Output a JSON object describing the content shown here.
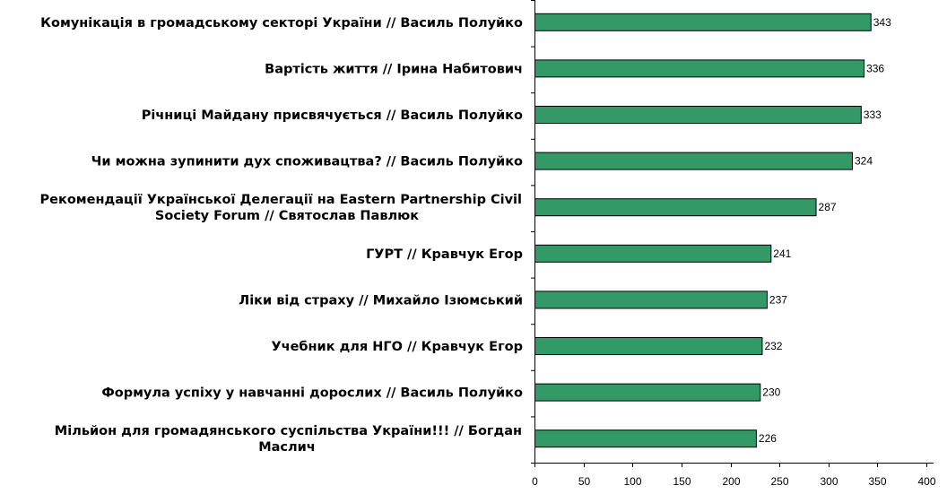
{
  "chart_data": {
    "type": "bar",
    "orientation": "horizontal",
    "title": "",
    "xlabel": "",
    "ylabel": "",
    "categories": [
      [
        "Комунікація в громадському секторі України  // Василь Полуйко"
      ],
      [
        "Вартість життя  // Ірина Набитович"
      ],
      [
        "Річниці Майдану присвячується  // Василь Полуйко"
      ],
      [
        "Чи можна зупинити дух споживацтва?  // Василь Полуйко"
      ],
      [
        "Рекомендації Української Делегації на Eastern Partnership Civil",
        "Society Forum  //  Святослав Павлюк"
      ],
      [
        "ГУРТ  // Кравчук Егор"
      ],
      [
        "Ліки від страху  // Михайло Ізюмський"
      ],
      [
        "Учебник для НГО  // Кравчук Егор"
      ],
      [
        "Формула успіху у навчанні дорослих // Василь Полуйко"
      ],
      [
        "Мільйон для громадянського суспільства України!!! // Богдан",
        "Маслич"
      ]
    ],
    "values": [
      343,
      336,
      333,
      324,
      287,
      241,
      237,
      232,
      230,
      226
    ],
    "xlim": [
      0,
      400
    ],
    "xticks": [
      "0",
      "50",
      "100",
      "150",
      "200",
      "250",
      "300",
      "350",
      "400"
    ],
    "grid": false,
    "legend": "none",
    "bar_color": "#339966"
  }
}
